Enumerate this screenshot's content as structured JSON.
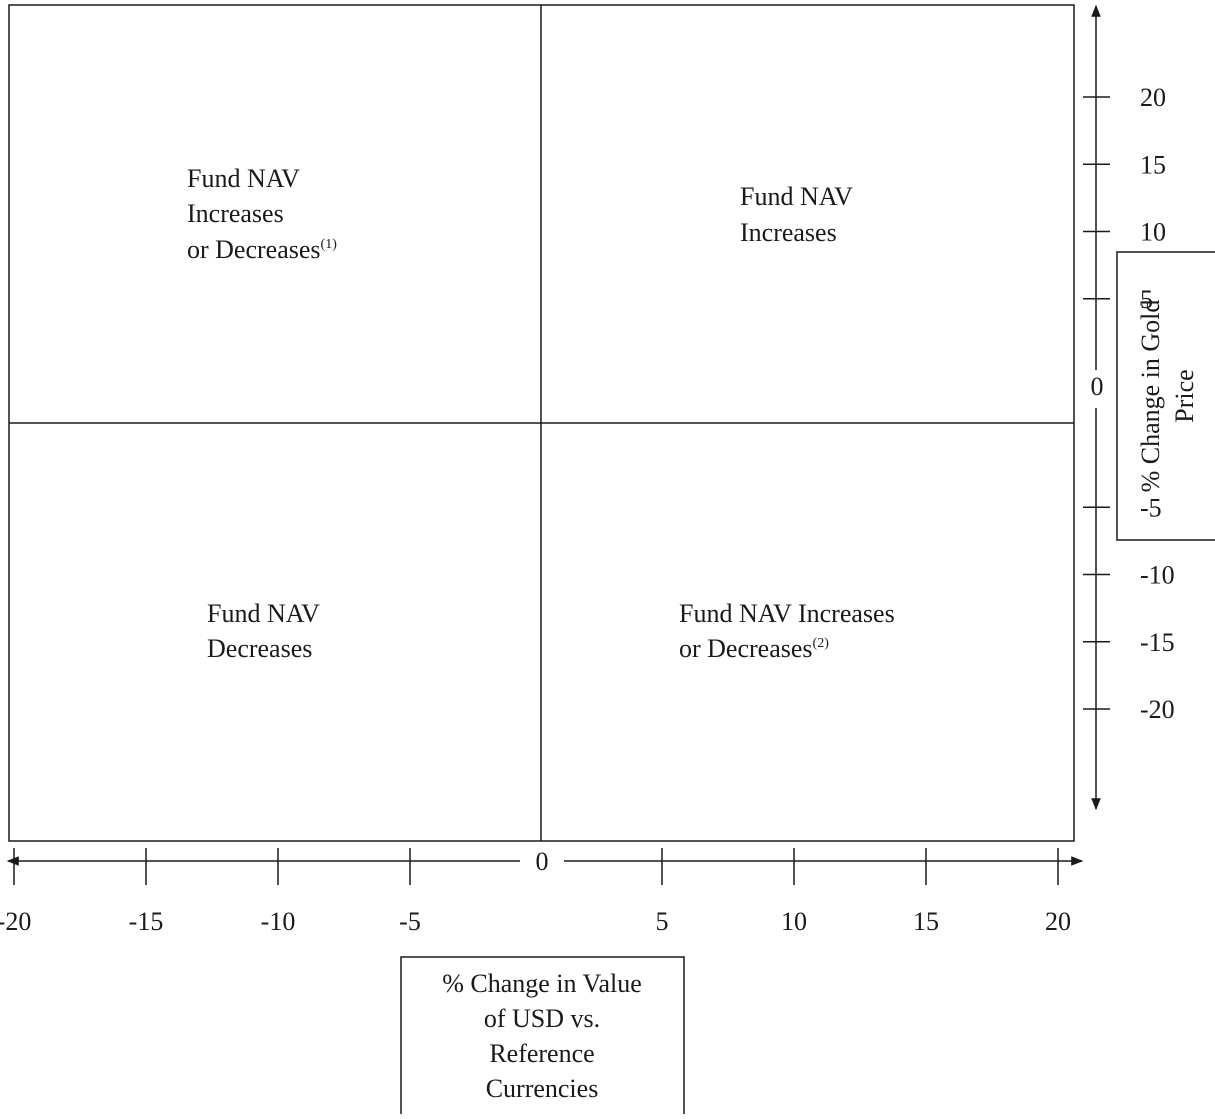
{
  "quadrants": {
    "top_left": {
      "lines": [
        "Fund NAV",
        "Increases",
        "or Decreases"
      ],
      "note": "(1)"
    },
    "top_right": {
      "lines": [
        "Fund NAV",
        "Increases"
      ]
    },
    "bottom_left": {
      "lines": [
        "Fund NAV",
        "Decreases"
      ]
    },
    "bottom_right": {
      "lines": [
        "Fund NAV Increases",
        "or Decreases"
      ],
      "note": "(2)"
    }
  },
  "x_axis": {
    "label_lines": [
      "% Change in Value",
      "of USD vs.",
      "Reference",
      "Currencies"
    ],
    "origin_label": "0",
    "ticks": [
      "-20",
      "-15",
      "-10",
      "-5",
      "5",
      "10",
      "15",
      "20"
    ]
  },
  "y_axis": {
    "label_lines": [
      "% Change in Gold",
      "Price"
    ],
    "origin_label": "0",
    "ticks": [
      "20",
      "15",
      "10",
      "5",
      "-5",
      "-10",
      "-15",
      "-20"
    ]
  },
  "colors": {
    "line": "#1a1a1a",
    "background": "#ffffff"
  }
}
